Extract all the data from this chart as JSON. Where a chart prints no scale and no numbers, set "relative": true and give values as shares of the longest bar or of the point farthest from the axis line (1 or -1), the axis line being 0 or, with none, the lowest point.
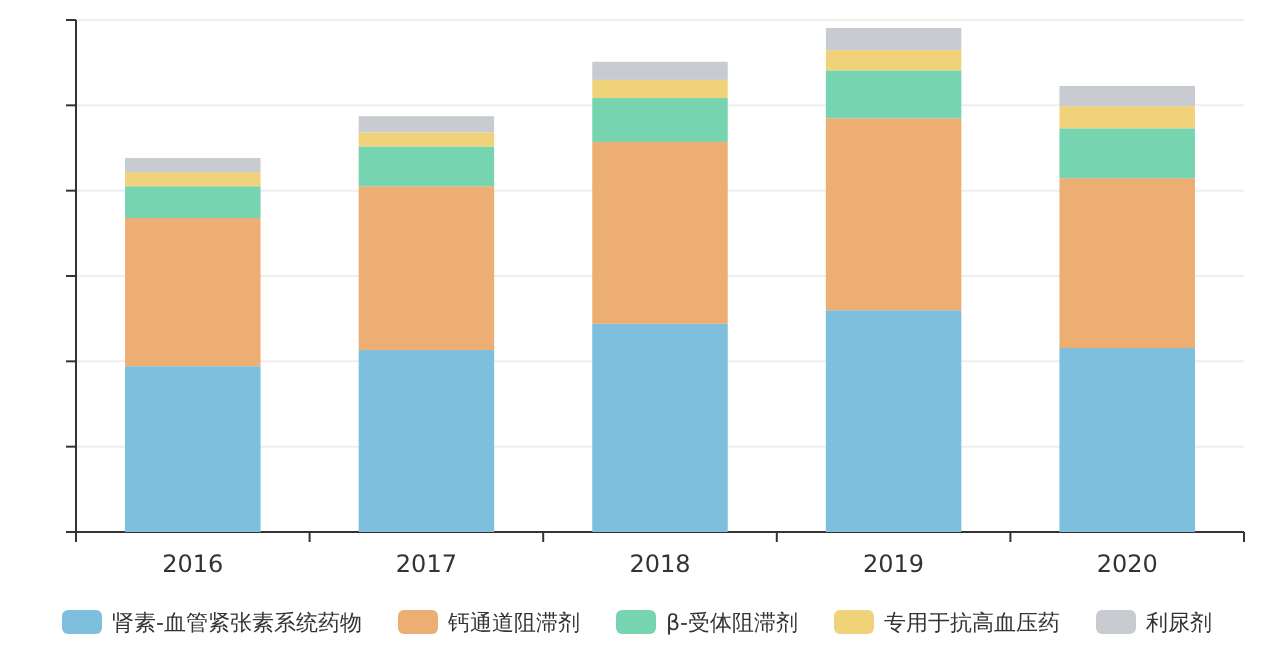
{
  "chart_data": {
    "type": "bar",
    "stacked": true,
    "relative": true,
    "grid": "y",
    "legend": "bottom",
    "categories": [
      "2016",
      "2017",
      "2018",
      "2019",
      "2020"
    ],
    "series": [
      {
        "name": "肾素-血管紧张素系统药物",
        "color": "#7dbfdd",
        "values": [
          0.329,
          0.361,
          0.413,
          0.44,
          0.365
        ]
      },
      {
        "name": "钙通道阻滞剂",
        "color": "#edae74",
        "values": [
          0.294,
          0.325,
          0.361,
          0.381,
          0.337
        ]
      },
      {
        "name": "β-受体阻滞剂",
        "color": "#76d4b0",
        "values": [
          0.063,
          0.079,
          0.087,
          0.095,
          0.099
        ]
      },
      {
        "name": "专用于抗高血压药",
        "color": "#f0d27a",
        "values": [
          0.028,
          0.028,
          0.036,
          0.04,
          0.044
        ]
      },
      {
        "name": "利尿剂",
        "color": "#c8ccd1",
        "values": [
          0.028,
          0.032,
          0.036,
          0.044,
          0.04
        ]
      }
    ]
  }
}
